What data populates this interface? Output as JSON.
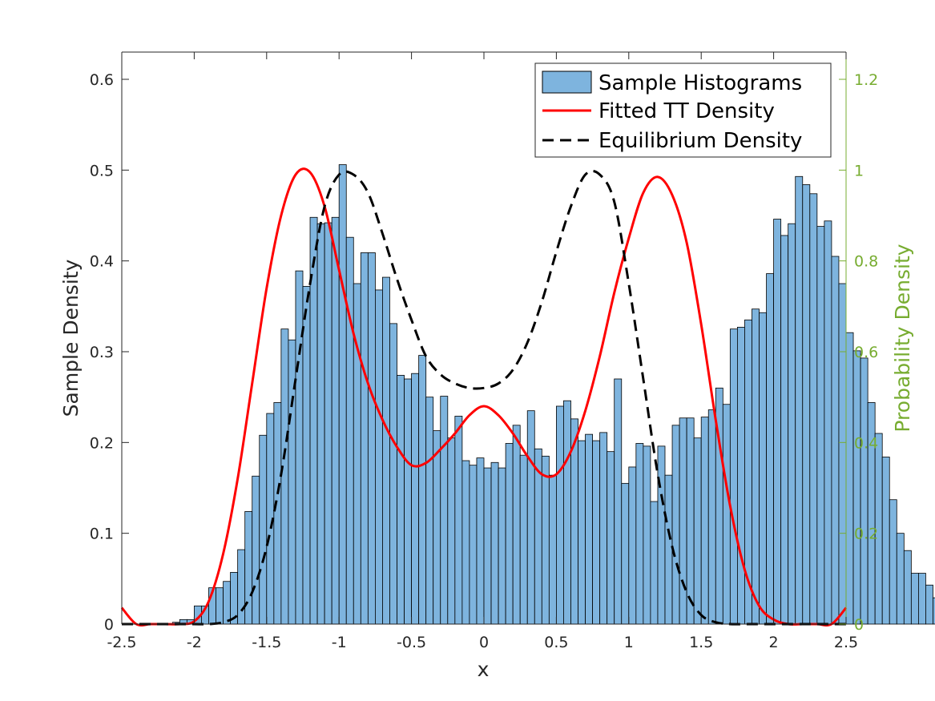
{
  "chart_data": {
    "type": "bar",
    "title": "",
    "xlabel": "x",
    "ylabel_left": "Sample Density",
    "ylabel_right": "Probability Density",
    "xlim": [
      -2.5,
      2.5
    ],
    "ylim_left": [
      0,
      0.63
    ],
    "ylim_right": [
      0,
      1.26
    ],
    "x_ticks": [
      -2.5,
      -2,
      -1.5,
      -1,
      -0.5,
      0,
      0.5,
      1,
      1.5,
      2,
      2.5
    ],
    "x_tick_labels": [
      "-2.5",
      "-2",
      "-1.5",
      "-1",
      "-0.5",
      "0",
      "0.5",
      "1",
      "1.5",
      "2",
      "2.5"
    ],
    "y_left_ticks": [
      0,
      0.1,
      0.2,
      0.3,
      0.4,
      0.5,
      0.6
    ],
    "y_left_tick_labels": [
      "0",
      "0.1",
      "0.2",
      "0.3",
      "0.4",
      "0.5",
      "0.6"
    ],
    "y_right_ticks": [
      0,
      0.2,
      0.4,
      0.6,
      0.8,
      1,
      1.2
    ],
    "y_right_tick_labels": [
      "0",
      "0.2",
      "0.4",
      "0.6",
      "0.8",
      "1",
      "1.2"
    ],
    "grid": false,
    "legend_position": "top-right",
    "legend": [
      "Sample Histograms",
      "Fitted TT Density",
      "Equilibrium Density"
    ],
    "colors": {
      "bars": "#7EB4DE",
      "bar_edge": "#000000",
      "fitted": "#FF0000",
      "equilibrium": "#000000",
      "right_axis": "#77AC30",
      "axis": "#262626"
    },
    "histogram": {
      "name": "Sample Histograms",
      "bin_width": 0.05,
      "bin_start": -2.15,
      "values": [
        0.002,
        0.005,
        0.005,
        0.02,
        0.02,
        0.04,
        0.04,
        0.047,
        0.057,
        0.082,
        0.124,
        0.163,
        0.208,
        0.232,
        0.244,
        0.325,
        0.313,
        0.389,
        0.372,
        0.448,
        0.441,
        0.442,
        0.448,
        0.506,
        0.426,
        0.375,
        0.409,
        0.409,
        0.368,
        0.382,
        0.331,
        0.274,
        0.27,
        0.276,
        0.296,
        0.25,
        0.213,
        0.251,
        0.205,
        0.229,
        0.18,
        0.175,
        0.183,
        0.172,
        0.178,
        0.172,
        0.199,
        0.219,
        0.186,
        0.235,
        0.193,
        0.185,
        0.164,
        0.24,
        0.246,
        0.226,
        0.202,
        0.209,
        0.202,
        0.211,
        0.19,
        0.27,
        0.155,
        0.173,
        0.199,
        0.196,
        0.135,
        0.196,
        0.164,
        0.219,
        0.227,
        0.227,
        0.205,
        0.228,
        0.236,
        0.26,
        0.242,
        0.325,
        0.327,
        0.335,
        0.347,
        0.343,
        0.386,
        0.446,
        0.428,
        0.441,
        0.493,
        0.484,
        0.474,
        0.438,
        0.444,
        0.405,
        0.375,
        0.321,
        0.301,
        0.293,
        0.244,
        0.21,
        0.184,
        0.137,
        0.1,
        0.081,
        0.056,
        0.056,
        0.043,
        0.029,
        0.011,
        0.006,
        0.006
      ]
    },
    "series": [
      {
        "name": "Fitted TT Density",
        "axis": "right",
        "x": [
          -2.5,
          -2.4,
          -2.3,
          -2.2,
          -2.1,
          -2.0,
          -1.9,
          -1.8,
          -1.7,
          -1.6,
          -1.5,
          -1.4,
          -1.3,
          -1.2,
          -1.1,
          -1.0,
          -0.9,
          -0.8,
          -0.7,
          -0.6,
          -0.5,
          -0.4,
          -0.3,
          -0.2,
          -0.1,
          0.0,
          0.1,
          0.2,
          0.3,
          0.4,
          0.5,
          0.6,
          0.7,
          0.8,
          0.9,
          1.0,
          1.1,
          1.2,
          1.3,
          1.4,
          1.5,
          1.6,
          1.7,
          1.8,
          1.9,
          2.0,
          2.1,
          2.2,
          2.3,
          2.4,
          2.5
        ],
        "y": [
          0.036,
          0.0,
          0.0,
          0.0,
          0.0,
          0.006,
          0.05,
          0.155,
          0.32,
          0.53,
          0.74,
          0.9,
          0.99,
          0.995,
          0.92,
          0.78,
          0.64,
          0.53,
          0.45,
          0.39,
          0.35,
          0.355,
          0.385,
          0.42,
          0.46,
          0.48,
          0.46,
          0.42,
          0.37,
          0.33,
          0.33,
          0.38,
          0.47,
          0.59,
          0.73,
          0.85,
          0.95,
          0.985,
          0.945,
          0.84,
          0.66,
          0.45,
          0.26,
          0.12,
          0.04,
          0.01,
          0.0,
          0.0,
          0.0,
          0.0,
          0.036
        ]
      },
      {
        "name": "Equilibrium Density",
        "axis": "right",
        "x": [
          -2.5,
          -2.4,
          -2.3,
          -2.2,
          -2.1,
          -2.0,
          -1.9,
          -1.8,
          -1.7,
          -1.6,
          -1.5,
          -1.4,
          -1.3,
          -1.2,
          -1.1,
          -1.0,
          -0.9,
          -0.8,
          -0.7,
          -0.6,
          -0.5,
          -0.4,
          -0.3,
          -0.2,
          -0.1,
          0.0,
          0.1,
          0.2,
          0.3,
          0.4,
          0.5,
          0.6,
          0.7,
          0.8,
          0.9,
          1.0,
          1.1,
          1.2,
          1.3,
          1.4,
          1.5,
          1.6,
          1.7,
          1.8,
          1.9,
          2.0,
          2.1,
          2.2,
          2.3,
          2.4,
          2.5
        ],
        "y": [
          0.0,
          0.0,
          0.0,
          0.0,
          0.0,
          0.0,
          0.0,
          0.004,
          0.02,
          0.07,
          0.17,
          0.33,
          0.54,
          0.75,
          0.92,
          0.99,
          0.99,
          0.95,
          0.86,
          0.76,
          0.67,
          0.59,
          0.55,
          0.53,
          0.52,
          0.52,
          0.53,
          0.56,
          0.62,
          0.71,
          0.82,
          0.92,
          0.99,
          0.99,
          0.93,
          0.75,
          0.54,
          0.33,
          0.17,
          0.07,
          0.02,
          0.004,
          0.0,
          0.0,
          0.0,
          0.0,
          0.0,
          0.0,
          0.0,
          0.0,
          0.0
        ]
      }
    ]
  }
}
